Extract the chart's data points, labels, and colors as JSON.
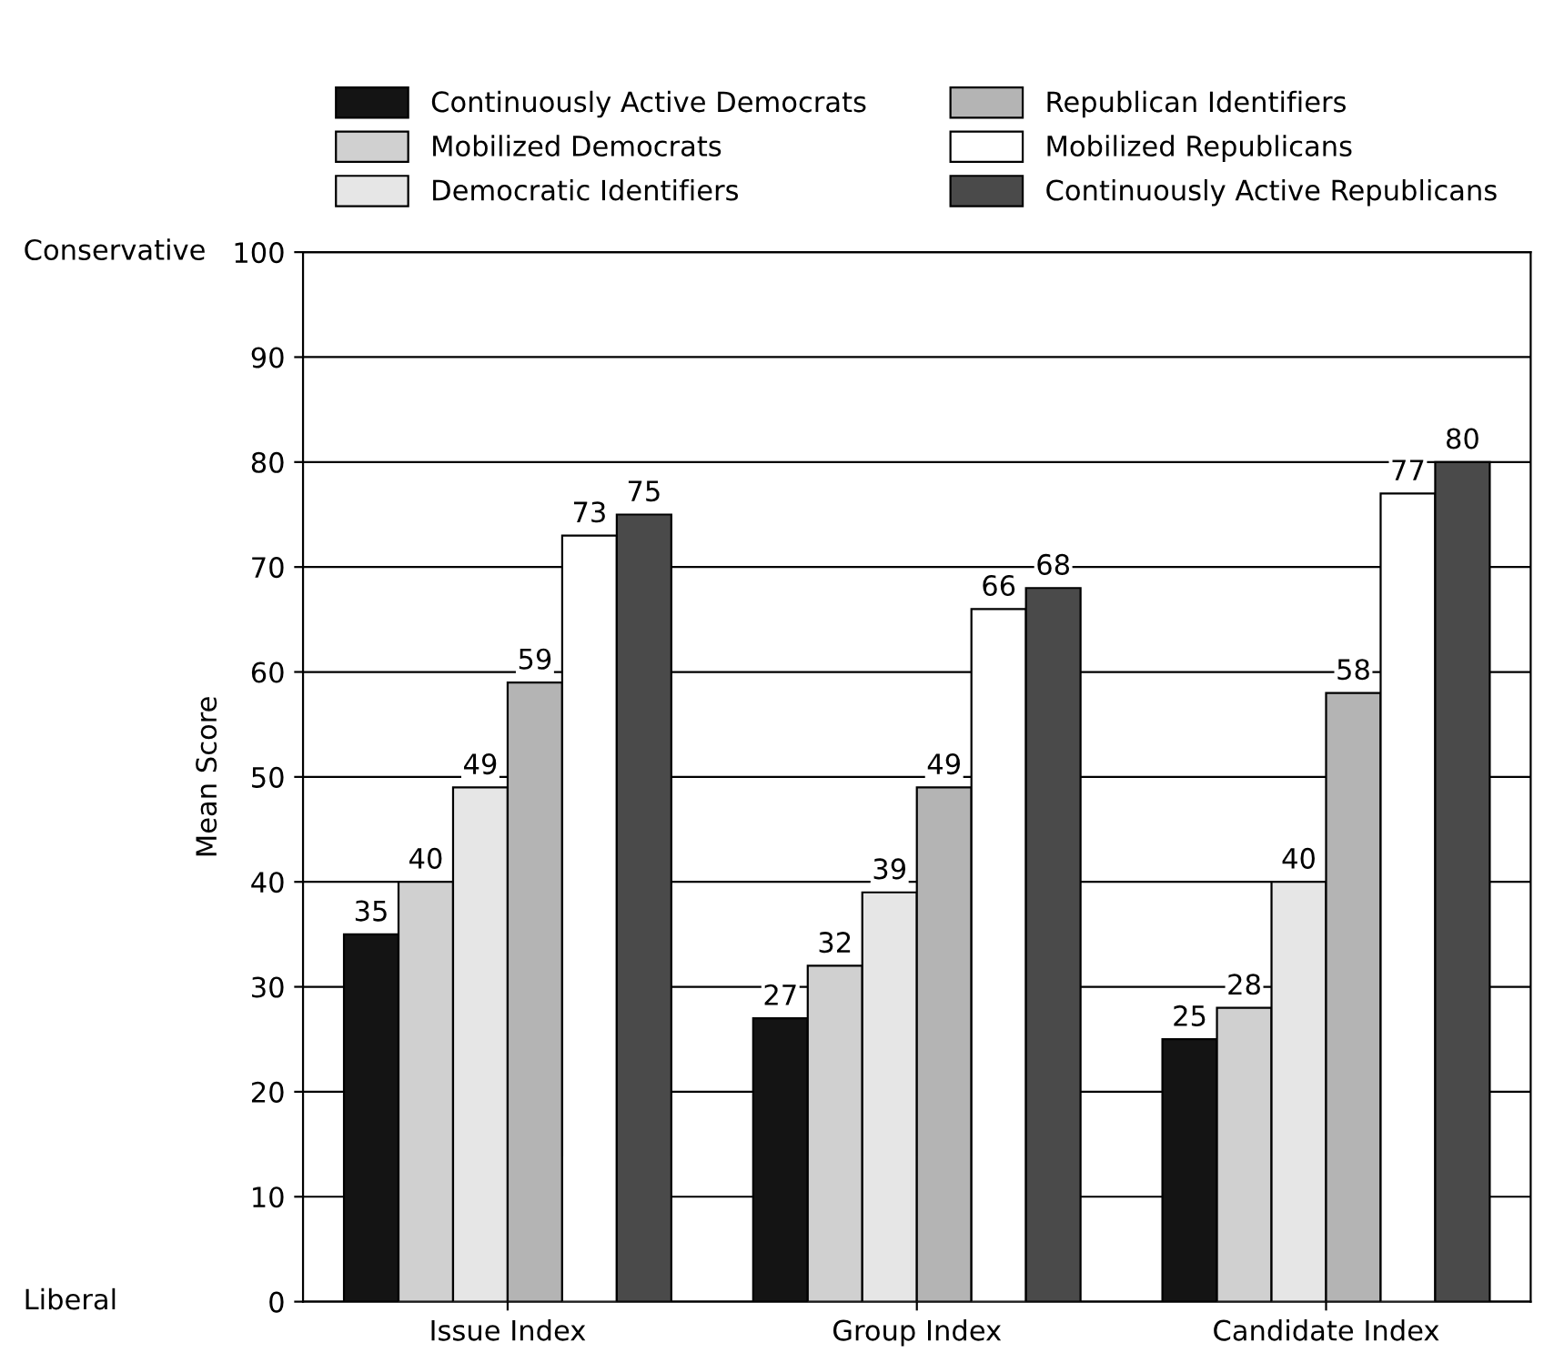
{
  "chart_data": {
    "type": "bar",
    "ylabel": "Mean Score",
    "categories": [
      "Issue Index",
      "Group Index",
      "Candidate Index"
    ],
    "series": [
      {
        "name": "Continuously Active Democrats",
        "color": "#141414",
        "values": [
          35,
          27,
          25
        ]
      },
      {
        "name": "Mobilized Democrats",
        "color": "#d0d0d0",
        "values": [
          40,
          32,
          28
        ]
      },
      {
        "name": "Democratic Identifiers",
        "color": "#e6e6e6",
        "values": [
          49,
          39,
          40
        ]
      },
      {
        "name": "Republican Identifiers",
        "color": "#b4b4b4",
        "values": [
          59,
          49,
          58
        ]
      },
      {
        "name": "Mobilized Republicans",
        "color": "#ffffff",
        "values": [
          73,
          66,
          77
        ]
      },
      {
        "name": "Continuously Active Republicans",
        "color": "#4a4a4a",
        "values": [
          75,
          68,
          80
        ]
      }
    ],
    "ylim": [
      0,
      100
    ],
    "yticks": [
      0,
      10,
      20,
      30,
      40,
      50,
      60,
      70,
      80,
      90,
      100
    ],
    "grid": "y",
    "legend": "top",
    "data_labels": true,
    "annotations": [
      "Conservative",
      "Liberal"
    ]
  }
}
